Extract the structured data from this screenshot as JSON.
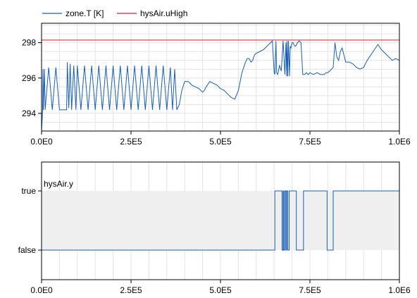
{
  "chart_data": [
    {
      "type": "line",
      "legend_placement": "top-left",
      "grid": true,
      "xlim": [
        0,
        1000000
      ],
      "ylim": [
        293,
        299.1
      ],
      "x_ticks": [
        0,
        250000,
        500000,
        750000,
        1000000
      ],
      "x_tick_labels": [
        "0.0E0",
        "2.5E5",
        "5.0E5",
        "7.5E5",
        "1.0E6"
      ],
      "y_ticks": [
        294,
        296,
        298
      ],
      "y_tick_labels": [
        "294",
        "296",
        "298"
      ],
      "series": [
        {
          "name": "zone.T [K]",
          "color": "#1a5fb4",
          "x": [
            0,
            3000,
            4000,
            5000,
            8000,
            10000,
            20000,
            30000,
            40000,
            50000,
            60000,
            70000,
            72000,
            76000,
            80000,
            84000,
            90000,
            96000,
            100000,
            110000,
            120000,
            130000,
            140000,
            150000,
            160000,
            170000,
            180000,
            190000,
            200000,
            210000,
            220000,
            230000,
            240000,
            250000,
            260000,
            270000,
            280000,
            290000,
            300000,
            310000,
            320000,
            330000,
            340000,
            350000,
            360000,
            366000,
            372000,
            378000,
            385000,
            392000,
            400000,
            410000,
            420000,
            430000,
            440000,
            450000,
            455000,
            460000,
            470000,
            480000,
            490000,
            500000,
            510000,
            520000,
            530000,
            540000,
            550000,
            560000,
            570000,
            575000,
            580000,
            585000,
            590000,
            595000,
            600000,
            610000,
            620000,
            630000,
            640000,
            645000,
            650000,
            652000,
            655000,
            657000,
            660000,
            665000,
            670000,
            675000,
            680000,
            683000,
            685000,
            686000,
            688000,
            690000,
            693000,
            695000,
            697000,
            700000,
            703000,
            705000,
            708000,
            710000,
            715000,
            720000,
            725000,
            730000,
            735000,
            740000,
            745000,
            750000,
            760000,
            770000,
            780000,
            790000,
            795000,
            800000,
            805000,
            810000,
            815000,
            820000,
            825000,
            830000,
            835000,
            840000,
            845000,
            850000,
            855000,
            860000,
            870000,
            880000,
            890000,
            900000,
            910000,
            920000,
            930000,
            940000,
            950000,
            960000,
            970000,
            980000,
            990000,
            1000000
          ],
          "y": [
            293.0,
            294.2,
            296.5,
            294.2,
            296.5,
            294.2,
            296.6,
            294.2,
            296.6,
            294.2,
            294.2,
            294.2,
            296.9,
            294.3,
            296.8,
            294.2,
            296.7,
            294.2,
            296.7,
            294.2,
            296.7,
            294.2,
            296.7,
            294.2,
            296.7,
            294.2,
            296.7,
            294.2,
            296.7,
            294.2,
            296.7,
            294.2,
            296.7,
            294.2,
            296.7,
            294.2,
            296.7,
            294.2,
            296.7,
            294.2,
            296.7,
            294.2,
            296.7,
            294.2,
            296.6,
            294.2,
            296.5,
            294.2,
            294.5,
            295.3,
            295.8,
            295.8,
            295.6,
            295.5,
            295.4,
            295.2,
            295.3,
            295.5,
            295.8,
            295.7,
            295.6,
            295.4,
            295.3,
            295.1,
            294.9,
            294.8,
            295.3,
            296.3,
            296.9,
            297.1,
            297.1,
            296.9,
            297.0,
            297.3,
            297.4,
            297.5,
            297.6,
            297.8,
            298.0,
            298.1,
            296.3,
            296.2,
            298.1,
            296.3,
            296.2,
            296.7,
            296.4,
            298.1,
            296.2,
            298.0,
            296.1,
            298.1,
            296.1,
            298.1,
            296.1,
            297.8,
            297.7,
            298.0,
            298.0,
            297.9,
            297.8,
            297.8,
            298.0,
            298.1,
            298.0,
            296.2,
            296.2,
            296.3,
            296.2,
            296.3,
            296.2,
            296.3,
            296.2,
            296.2,
            296.3,
            296.3,
            296.4,
            296.5,
            296.6,
            298.0,
            297.2,
            297.0,
            297.5,
            297.7,
            297.3,
            296.9,
            296.9,
            296.9,
            296.8,
            296.6,
            296.5,
            296.6,
            297.0,
            297.3,
            297.6,
            297.9,
            297.6,
            297.4,
            297.2,
            297.0,
            297.1,
            297.0
          ]
        },
        {
          "name": "hysAir.uHigh",
          "color": "#e01b24",
          "x": [
            0,
            1000000
          ],
          "y": [
            298.15,
            298.15
          ]
        }
      ]
    },
    {
      "type": "line",
      "grid": true,
      "xlim": [
        0,
        1000000
      ],
      "x_ticks": [
        0,
        250000,
        500000,
        750000,
        1000000
      ],
      "x_tick_labels": [
        "0.0E0",
        "2.5E5",
        "5.0E5",
        "7.5E5",
        "1.0E6"
      ],
      "y_ticks": [
        0,
        1
      ],
      "y_tick_labels": [
        "false",
        "true"
      ],
      "series": [
        {
          "name": "hysAir.y",
          "color": "#1a5fb4",
          "x": [
            0,
            652000,
            672000,
            675000,
            677000,
            680000,
            683000,
            685000,
            688000,
            692000,
            712000,
            722000,
            730000,
            732000,
            798000,
            800000,
            810000,
            815000,
            1000000
          ],
          "y": [
            0,
            1,
            0,
            1,
            0,
            1,
            0,
            1,
            0,
            1,
            0,
            0,
            0,
            1,
            0,
            0,
            0,
            1,
            1
          ]
        }
      ]
    }
  ]
}
